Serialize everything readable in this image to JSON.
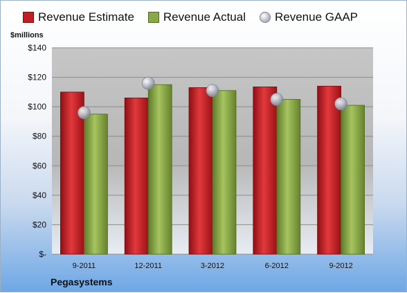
{
  "legend": {
    "estimate": "Revenue Estimate",
    "actual": "Revenue Actual",
    "gaap": "Revenue GAAP"
  },
  "unit_label": "$millions",
  "company": "Pegasystems",
  "colors": {
    "estimate": "#c41e24",
    "actual": "#8aa84a",
    "gaap": "#a9aebd",
    "plot_bg": "#c8c8c8"
  },
  "chart_data": {
    "type": "bar",
    "categories": [
      "9-2011",
      "12-2011",
      "3-2012",
      "6-2012",
      "9-2012"
    ],
    "series": [
      {
        "name": "Revenue Estimate",
        "values": [
          110,
          106,
          113,
          113.5,
          114
        ]
      },
      {
        "name": "Revenue Actual",
        "values": [
          95,
          115,
          111,
          105,
          101
        ]
      },
      {
        "name": "Revenue GAAP",
        "values": [
          96,
          116,
          111,
          105,
          102
        ]
      }
    ],
    "ylabel": "$millions",
    "ylim": [
      0,
      140
    ],
    "yticks": [
      0,
      20,
      40,
      60,
      80,
      100,
      120,
      140
    ],
    "ytick_labels": [
      "$-",
      "$20",
      "$40",
      "$60",
      "$80",
      "$100",
      "$120",
      "$140"
    ],
    "grid": true,
    "legend_position": "top"
  }
}
